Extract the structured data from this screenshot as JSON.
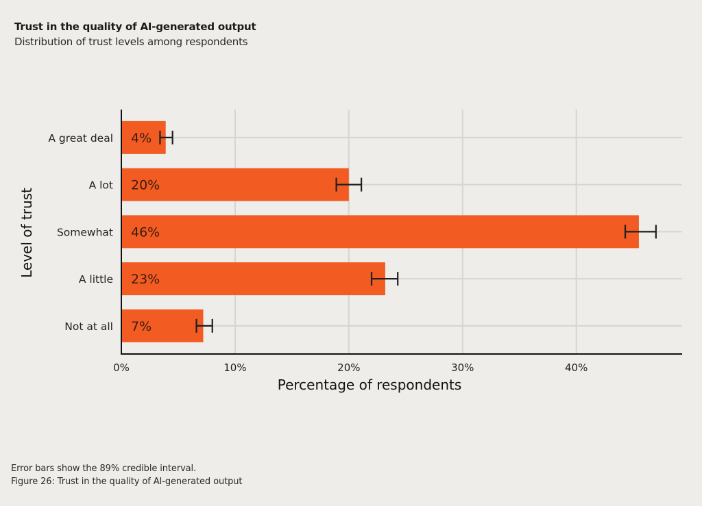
{
  "header": {
    "title": "Trust in the quality of AI-generated output",
    "subtitle": "Distribution of trust levels among respondents"
  },
  "footer": {
    "note": "Error bars show the 89% credible interval.",
    "caption": "Figure 26: Trust in the quality of AI-generated output"
  },
  "chart_data": {
    "type": "bar",
    "orientation": "horizontal",
    "title": "Trust in the quality of AI-generated output",
    "subtitle": "Distribution of trust levels among respondents",
    "xlabel": "Percentage of respondents",
    "ylabel": "Level of trust",
    "categories": [
      "A great deal",
      "A lot",
      "Somewhat",
      "A little",
      "Not at all"
    ],
    "values": [
      3.9,
      20.0,
      45.5,
      23.2,
      7.2
    ],
    "data_labels": [
      "4%",
      "20%",
      "46%",
      "23%",
      "7%"
    ],
    "error_low": [
      3.4,
      18.9,
      44.3,
      22.0,
      6.6
    ],
    "error_high": [
      4.5,
      21.1,
      47.0,
      24.3,
      8.0
    ],
    "error_bar_meaning": "89% credible interval",
    "xlim": [
      0,
      49.3
    ],
    "xticks": [
      0,
      10,
      20,
      30,
      40
    ],
    "xtick_labels": [
      "0%",
      "10%",
      "20%",
      "30%",
      "40%"
    ],
    "grid": "vertical and horizontal",
    "legend": "none",
    "colors": {
      "bar": "#F25C22",
      "data_label": "#3A1A10",
      "error_bar": "#1F1F1F",
      "grid": "#D6D5D1",
      "axis": "#111111",
      "background": "#EEEDE9"
    }
  }
}
